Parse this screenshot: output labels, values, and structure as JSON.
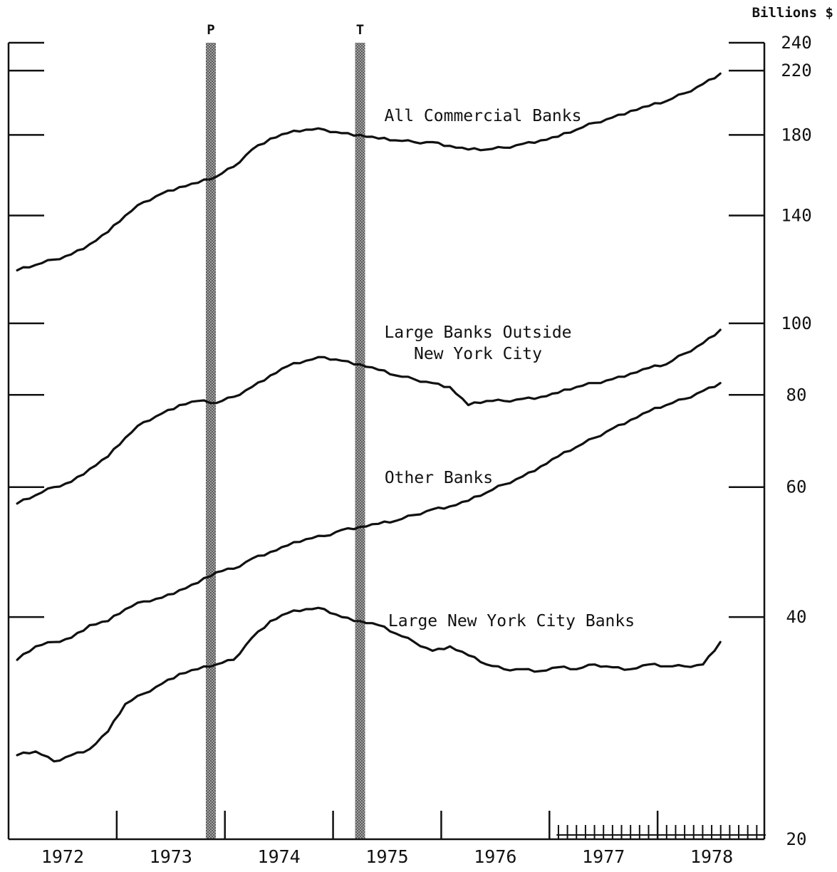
{
  "chart_data": {
    "type": "line",
    "unit_label": "Billions $",
    "y_scale": "log",
    "ylim": [
      20,
      240
    ],
    "y_ticks_right": [
      {
        "value": 240,
        "label": "240"
      },
      {
        "value": 220,
        "label": "220"
      },
      {
        "value": 180,
        "label": "180"
      },
      {
        "value": 140,
        "label": "140"
      },
      {
        "value": 100,
        "label": "100"
      },
      {
        "value": 80,
        "label": "80"
      },
      {
        "value": 60,
        "label": "60"
      },
      {
        "value": 40,
        "label": "40"
      },
      {
        "value": 20,
        "label": "20"
      }
    ],
    "xlim": [
      1972.0,
      1979.0
    ],
    "x_tick_labels": [
      {
        "value": 1972.5,
        "label": "1972"
      },
      {
        "value": 1973.5,
        "label": "1973"
      },
      {
        "value": 1974.5,
        "label": "1974"
      },
      {
        "value": 1975.5,
        "label": "1975"
      },
      {
        "value": 1976.5,
        "label": "1976"
      },
      {
        "value": 1977.5,
        "label": "1977"
      },
      {
        "value": 1978.5,
        "label": "1978"
      }
    ],
    "bands": [
      {
        "label": "P",
        "x": 1973.87
      },
      {
        "label": "T",
        "x": 1975.25
      }
    ],
    "series": [
      {
        "name": "All Commercial Banks",
        "x": [
          1972.08,
          1972.25,
          1972.42,
          1972.58,
          1972.75,
          1972.92,
          1973.08,
          1973.25,
          1973.42,
          1973.58,
          1973.75,
          1973.92,
          1974.08,
          1974.25,
          1974.42,
          1974.58,
          1974.75,
          1974.92,
          1975.08,
          1975.25,
          1975.42,
          1975.58,
          1975.75,
          1975.92,
          1976.08,
          1976.25,
          1976.42,
          1976.58,
          1976.75,
          1976.92,
          1977.08,
          1977.25,
          1977.42,
          1977.58,
          1977.75,
          1977.92,
          1978.08,
          1978.25,
          1978.42,
          1978.58
        ],
        "values": [
          118,
          120,
          122,
          124,
          128,
          133,
          140,
          146,
          150,
          153,
          155,
          158,
          163,
          172,
          178,
          181,
          183,
          183,
          181,
          180,
          178,
          177,
          176,
          176,
          174,
          172,
          172,
          173,
          175,
          177,
          179,
          183,
          187,
          190,
          194,
          197,
          200,
          205,
          211,
          218
        ]
      },
      {
        "name": "Large Banks Outside New York City",
        "x": [
          1972.08,
          1972.25,
          1972.42,
          1972.58,
          1972.75,
          1972.92,
          1973.08,
          1973.25,
          1973.42,
          1973.58,
          1973.75,
          1973.92,
          1974.08,
          1974.25,
          1974.42,
          1974.58,
          1974.75,
          1974.92,
          1975.08,
          1975.25,
          1975.42,
          1975.58,
          1975.75,
          1975.92,
          1976.08,
          1976.25,
          1976.42,
          1976.58,
          1976.75,
          1976.92,
          1977.08,
          1977.25,
          1977.42,
          1977.58,
          1977.75,
          1977.92,
          1978.08,
          1978.25,
          1978.42,
          1978.58
        ],
        "values": [
          57,
          58.5,
          60,
          61,
          63.5,
          66,
          70,
          73.5,
          75.5,
          77.5,
          78.5,
          78,
          79.5,
          82,
          85,
          87.5,
          89,
          90,
          89,
          88,
          86.5,
          85,
          84,
          83,
          82,
          77.5,
          78.5,
          78.5,
          79,
          79.5,
          80.5,
          82,
          83,
          84,
          85.5,
          87,
          88,
          91,
          94,
          98
        ]
      },
      {
        "name": "Other Banks",
        "x": [
          1972.08,
          1972.25,
          1972.42,
          1972.58,
          1972.75,
          1972.92,
          1973.08,
          1973.25,
          1973.42,
          1973.58,
          1973.75,
          1973.92,
          1974.08,
          1974.25,
          1974.42,
          1974.58,
          1974.75,
          1974.92,
          1975.08,
          1975.25,
          1975.42,
          1975.58,
          1975.75,
          1975.92,
          1976.08,
          1976.25,
          1976.42,
          1976.58,
          1976.75,
          1976.92,
          1977.08,
          1977.25,
          1977.42,
          1977.58,
          1977.75,
          1977.92,
          1978.08,
          1978.25,
          1978.42,
          1978.58
        ],
        "values": [
          35,
          36.5,
          37,
          37.5,
          39,
          39.5,
          41,
          42,
          42.5,
          43.5,
          44.5,
          46,
          46.5,
          48,
          49,
          50,
          51,
          51.5,
          52.5,
          53,
          53.5,
          54,
          55,
          56,
          56.5,
          57.5,
          59,
          60.5,
          62,
          64,
          66,
          68,
          70,
          72,
          74,
          76,
          77.5,
          79,
          81,
          83
        ]
      },
      {
        "name": "Large New York City Banks",
        "x": [
          1972.08,
          1972.25,
          1972.42,
          1972.58,
          1972.75,
          1972.92,
          1973.08,
          1973.25,
          1973.42,
          1973.58,
          1973.75,
          1973.92,
          1974.08,
          1974.25,
          1974.42,
          1974.58,
          1974.75,
          1974.92,
          1975.08,
          1975.25,
          1975.42,
          1975.58,
          1975.75,
          1975.92,
          1976.08,
          1976.25,
          1976.42,
          1976.58,
          1976.75,
          1976.92,
          1977.08,
          1977.25,
          1977.42,
          1977.58,
          1977.75,
          1977.92,
          1978.08,
          1978.25,
          1978.42,
          1978.58
        ],
        "values": [
          26,
          26.3,
          25.5,
          26,
          26.5,
          28,
          30.5,
          31.5,
          32.5,
          33.5,
          34,
          34.5,
          35,
          37.5,
          39.5,
          40.5,
          41,
          41,
          40,
          39.5,
          39,
          38,
          37,
          36,
          36.5,
          35.5,
          34.5,
          34,
          34,
          33.8,
          34.2,
          34,
          34.5,
          34.2,
          34,
          34.5,
          34.3,
          34.3,
          34.5,
          37
        ]
      }
    ]
  }
}
